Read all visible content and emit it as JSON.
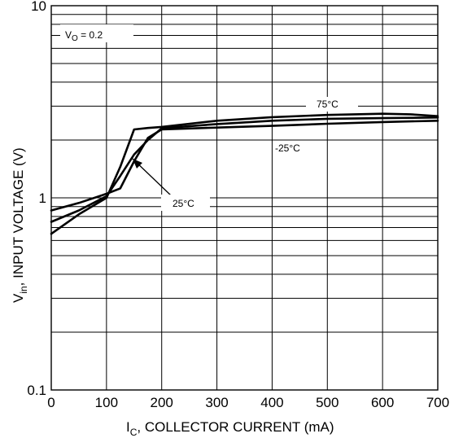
{
  "chart_data": {
    "type": "line",
    "xlabel": {
      "main": "I",
      "sub": "C",
      "rest": ", COLLECTOR CURRENT (mA)"
    },
    "ylabel": {
      "main": "V",
      "sub": "in",
      "rest": ", INPUT VOLTAGE (V)"
    },
    "xlim": [
      0,
      700
    ],
    "ylim": [
      0.1,
      10
    ],
    "y_scale": "log",
    "grid": true,
    "x_ticks": [
      0,
      100,
      200,
      300,
      400,
      500,
      600,
      700
    ],
    "x_tick_labels": [
      "0",
      "100",
      "200",
      "300",
      "400",
      "500",
      "600",
      "700"
    ],
    "y_ticks": [
      0.1,
      1,
      10
    ],
    "y_tick_labels": [
      "0.1",
      "1",
      "10"
    ],
    "condition": {
      "main": "V",
      "sub": "O",
      "rest": " = 0.2"
    },
    "series": [
      {
        "name": "75°C",
        "x": [
          0,
          50,
          100,
          125,
          150,
          175,
          200,
          300,
          400,
          500,
          600,
          650,
          700
        ],
        "y": [
          0.65,
          0.82,
          1.0,
          1.45,
          2.27,
          2.31,
          2.34,
          2.52,
          2.63,
          2.7,
          2.74,
          2.72,
          2.66
        ]
      },
      {
        "name": "25°C",
        "x": [
          0,
          50,
          100,
          125,
          150,
          175,
          200,
          300,
          400,
          500,
          600,
          700
        ],
        "y": [
          0.75,
          0.86,
          1.02,
          1.3,
          1.68,
          2.0,
          2.3,
          2.42,
          2.52,
          2.58,
          2.6,
          2.62
        ]
      },
      {
        "name": "-25°C",
        "x": [
          0,
          50,
          100,
          125,
          150,
          175,
          200,
          300,
          400,
          500,
          600,
          700
        ],
        "y": [
          0.86,
          0.94,
          1.05,
          1.12,
          1.55,
          2.05,
          2.27,
          2.32,
          2.37,
          2.43,
          2.48,
          2.52
        ]
      }
    ],
    "labels": [
      {
        "text": "75°C",
        "series": "75°C"
      },
      {
        "text": "-25°C",
        "series": "-25°C"
      },
      {
        "text": "25°C",
        "series": "25°C"
      }
    ]
  }
}
